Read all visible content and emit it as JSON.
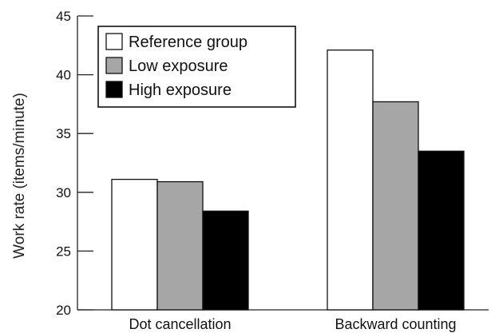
{
  "chart_data": {
    "type": "bar",
    "title": "",
    "xlabel": "",
    "ylabel": "Work rate (items/minute)",
    "ylim": [
      20,
      45
    ],
    "yticks": [
      20,
      25,
      30,
      35,
      40,
      45
    ],
    "categories": [
      "Dot cancellation",
      "Backward counting"
    ],
    "series": [
      {
        "name": "Reference group",
        "values": [
          31.1,
          42.1
        ],
        "color": "#ffffff"
      },
      {
        "name": "Low exposure",
        "values": [
          30.9,
          37.7
        ],
        "color": "#a6a6a6"
      },
      {
        "name": "High exposure",
        "values": [
          28.4,
          33.5
        ],
        "color": "#000000"
      }
    ],
    "legend_position": "top-left",
    "grid": false
  }
}
